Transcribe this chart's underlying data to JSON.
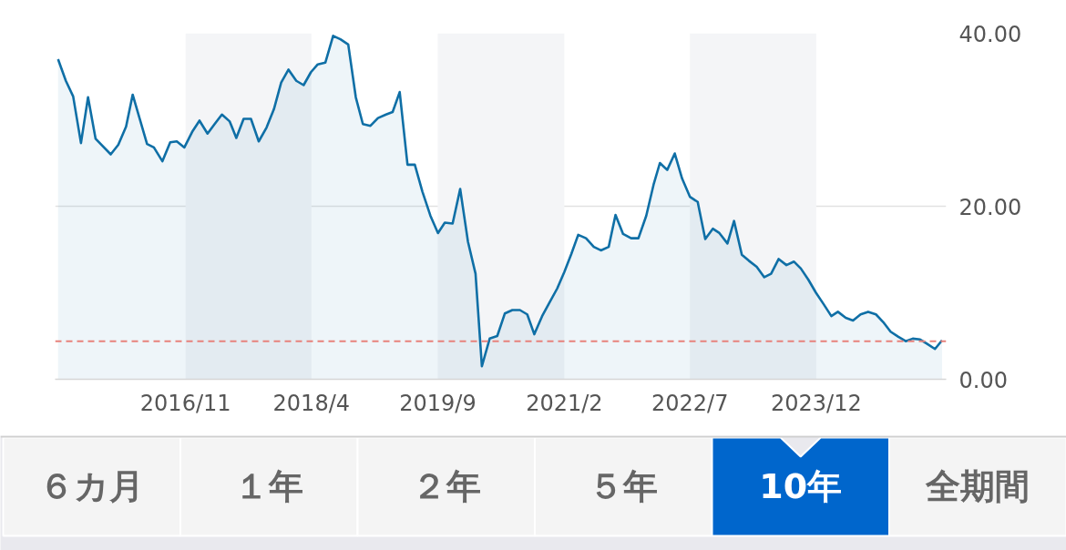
{
  "chart_data": [
    {
      "type": "area",
      "color": "#0f6fa6",
      "x": [
        "2015-05-28",
        "2015-06-29",
        "2015-07-29",
        "2015-08-30",
        "2015-09-28",
        "2015-10-29",
        "2015-12-30",
        "2016-01-30",
        "2016-03-02",
        "2016-03-29",
        "2016-05-27",
        "2016-06-24",
        "2016-07-29",
        "2016-08-30",
        "2016-09-26",
        "2016-10-27",
        "2016-11-28",
        "2016-12-28",
        "2017-01-30",
        "2017-02-28",
        "2017-03-30",
        "2017-05-01",
        "2017-05-28",
        "2017-06-27",
        "2017-07-27",
        "2017-08-28",
        "2017-09-29",
        "2017-10-29",
        "2017-11-28",
        "2017-12-28",
        "2018-01-29",
        "2018-02-28",
        "2018-03-30",
        "2018-04-27",
        "2018-05-28",
        "2018-06-29",
        "2018-07-29",
        "2018-08-30",
        "2018-09-30",
        "2018-10-29",
        "2018-11-29",
        "2018-12-30",
        "2019-02-01",
        "2019-02-28",
        "2019-03-29",
        "2019-04-30",
        "2019-05-30",
        "2019-06-30",
        "2019-08-02",
        "2019-09-02",
        "2019-09-30",
        "2019-11-01",
        "2019-12-02",
        "2020-01-03",
        "2020-02-03",
        "2020-02-29",
        "2020-04-01",
        "2020-05-02",
        "2020-06-02",
        "2020-07-03",
        "2020-08-03",
        "2020-09-02",
        "2020-10-01",
        "2020-11-02",
        "2020-12-03",
        "2021-01-03",
        "2021-02-01",
        "2021-03-02",
        "2021-03-30",
        "2021-05-01",
        "2021-06-02",
        "2021-07-01",
        "2021-08-02",
        "2021-08-30",
        "2021-09-30",
        "2021-11-02",
        "2021-12-02",
        "2022-01-03",
        "2022-02-03",
        "2022-02-28",
        "2022-03-30",
        "2022-04-30",
        "2022-05-30",
        "2022-07-01",
        "2022-08-02",
        "2022-09-02",
        "2022-10-03",
        "2022-10-30",
        "2022-12-02",
        "2022-12-29",
        "2023-01-30",
        "2023-02-28",
        "2023-04-01",
        "2023-05-02",
        "2023-05-30",
        "2023-06-30",
        "2023-08-01",
        "2023-09-01",
        "2023-09-29",
        "2023-10-30",
        "2023-11-30",
        "2023-12-31",
        "2024-02-01",
        "2024-02-28",
        "2024-03-31",
        "2024-04-30",
        "2024-05-31",
        "2024-07-01",
        "2024-08-02",
        "2024-09-01",
        "2024-10-01",
        "2024-11-02",
        "2024-12-02",
        "2024-12-31",
        "2025-01-30",
        "2025-02-28",
        "2025-04-01",
        "2025-04-30"
      ],
      "values": [
        37.0,
        34.5,
        32.7,
        27.3,
        32.6,
        27.8,
        26.0,
        27.1,
        29.2,
        32.9,
        27.2,
        26.8,
        25.2,
        27.4,
        27.5,
        26.8,
        28.6,
        29.9,
        28.4,
        29.5,
        30.6,
        29.8,
        27.9,
        30.1,
        30.1,
        27.5,
        29.1,
        31.2,
        34.3,
        35.8,
        34.5,
        34.0,
        35.5,
        36.4,
        36.6,
        39.7,
        39.3,
        38.7,
        32.6,
        29.5,
        29.3,
        30.2,
        30.6,
        30.9,
        33.2,
        24.8,
        24.8,
        21.7,
        18.9,
        16.9,
        18.1,
        18.0,
        22.0,
        15.9,
        12.2,
        1.5,
        4.7,
        5.0,
        7.6,
        8.0,
        8.0,
        7.5,
        5.2,
        7.3,
        8.9,
        10.5,
        12.4,
        14.5,
        16.7,
        16.3,
        15.3,
        14.9,
        15.3,
        19.0,
        16.8,
        16.3,
        16.3,
        18.9,
        22.6,
        25.0,
        24.2,
        26.1,
        23.2,
        21.1,
        20.5,
        16.2,
        17.4,
        16.9,
        15.7,
        18.3,
        14.4,
        13.7,
        13.0,
        11.8,
        12.2,
        13.9,
        13.2,
        13.6,
        12.8,
        11.5,
        10.0,
        8.7,
        7.3,
        7.8,
        7.1,
        6.8,
        7.5,
        7.8,
        7.5,
        6.6,
        5.5,
        4.9,
        4.4,
        4.7,
        4.6,
        4.1,
        3.5,
        4.5
      ],
      "xlim": [
        "2015-05-16",
        "2025-05-17"
      ],
      "xticks": [
        {
          "value": "2016-11-01",
          "label": "2016/11"
        },
        {
          "value": "2018-04-01",
          "label": "2018/4"
        },
        {
          "value": "2019-09-01",
          "label": "2019/9"
        },
        {
          "value": "2021-02-01",
          "label": "2021/2"
        },
        {
          "value": "2022-07-01",
          "label": "2022/7"
        },
        {
          "value": "2023-12-01",
          "label": "2023/12"
        }
      ],
      "ylim": [
        0,
        40
      ],
      "yticks": [
        {
          "value": 0,
          "label": "0.00"
        },
        {
          "value": 20,
          "label": "20.00"
        },
        {
          "value": 40,
          "label": "40.00"
        }
      ],
      "grid": "y",
      "ref_lines": [
        {
          "axis": "y",
          "value": 4.4,
          "color": "#e8827c",
          "line_style": "dashed"
        }
      ],
      "bands": [
        {
          "axis": "x",
          "from": "2016-11-01",
          "to": "2018-04-01",
          "color": "#f4f5f7"
        },
        {
          "axis": "x",
          "from": "2019-09-01",
          "to": "2021-02-01",
          "color": "#f4f5f7"
        },
        {
          "axis": "x",
          "from": "2022-07-01",
          "to": "2023-12-01",
          "color": "#f4f5f7"
        }
      ]
    },
    {
      "type": "other",
      "categories": [
        "６カ月",
        "１年",
        "２年",
        "５年",
        "10年",
        "全期間"
      ],
      "colors": [
        "#f4f4f4",
        "#f4f4f4",
        "#f4f4f4",
        "#f4f4f4",
        "#0066cc",
        "#f4f4f4"
      ]
    }
  ]
}
